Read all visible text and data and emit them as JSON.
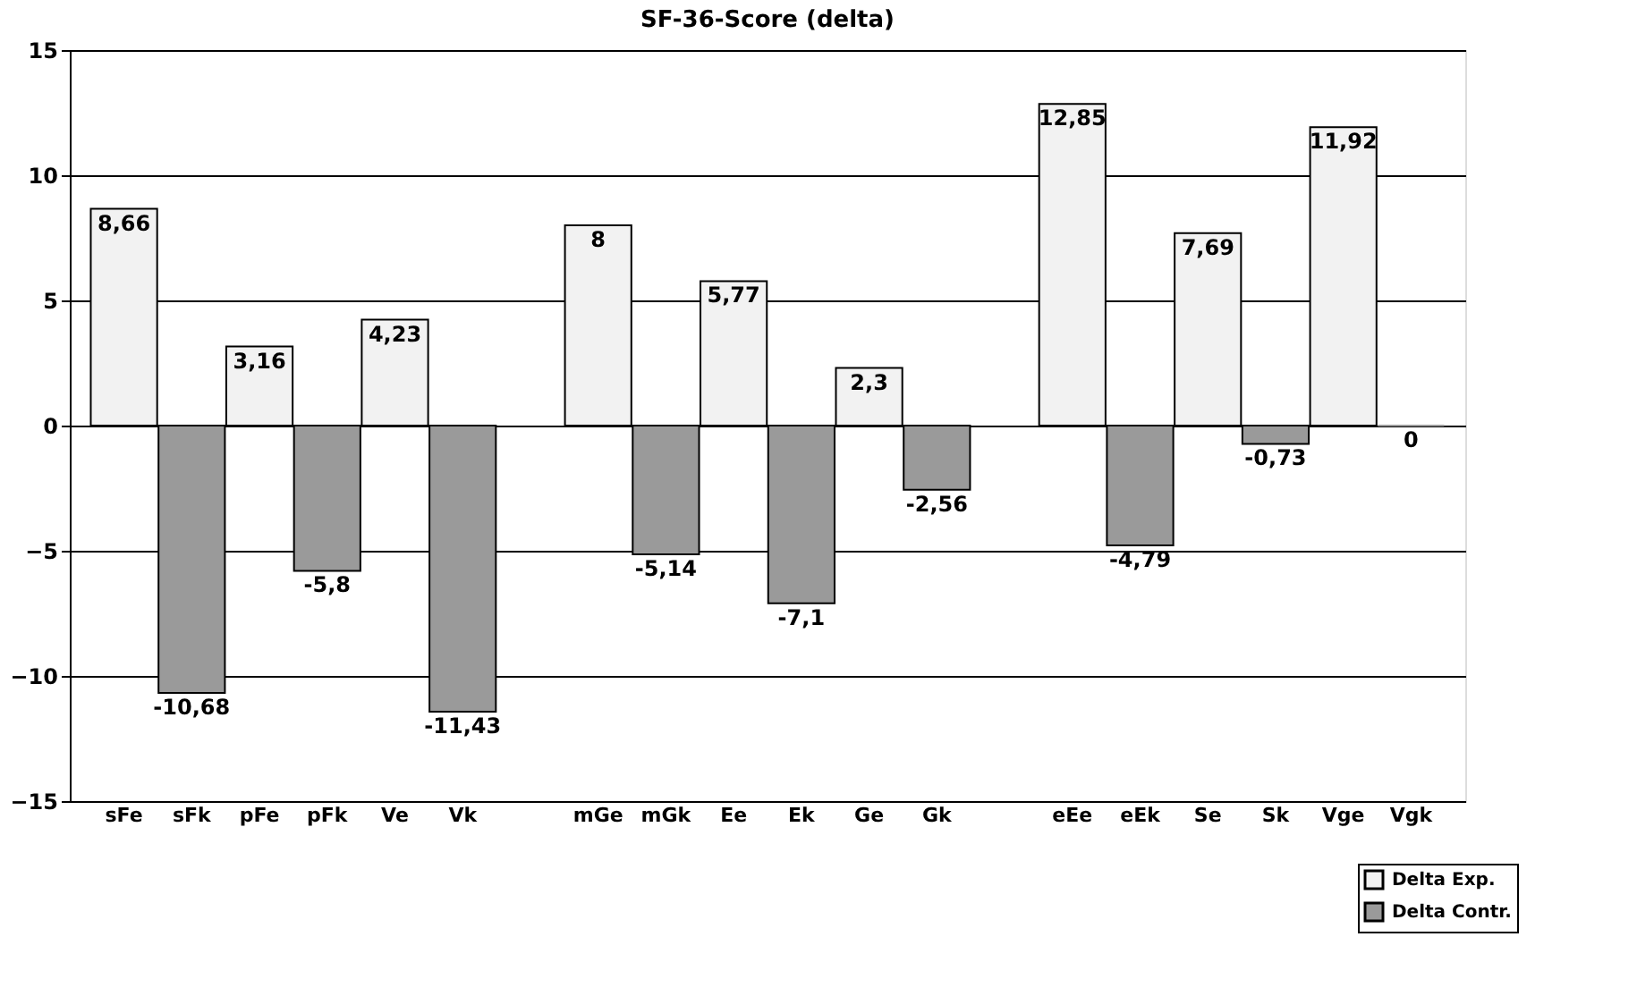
{
  "chart_data": {
    "type": "bar",
    "title": "SF-36-Score (delta)",
    "categories": [
      "sFe",
      "sFk",
      "pFe",
      "pFk",
      "Ve",
      "Vk",
      null,
      "mGe",
      "mGk",
      "Ee",
      "Ek",
      "Ge",
      "Gk",
      null,
      "eEe",
      "eEk",
      "Se",
      "Sk",
      "Vge",
      "Vgk"
    ],
    "series": [
      {
        "name": "Delta Exp.",
        "color": "#f2f2f2",
        "values": [
          8.66,
          null,
          3.16,
          null,
          4.23,
          null,
          null,
          8,
          null,
          5.77,
          null,
          2.3,
          null,
          null,
          12.85,
          null,
          7.69,
          null,
          11.92,
          null
        ],
        "value_labels": [
          "8,66",
          null,
          "3,16",
          null,
          "4,23",
          null,
          null,
          "8",
          null,
          "5,77",
          null,
          "2,3",
          null,
          null,
          "12,85",
          null,
          "7,69",
          null,
          "11,92",
          null
        ]
      },
      {
        "name": "Delta Contr.",
        "color": "#9a9a9a",
        "values": [
          null,
          -10.68,
          null,
          -5.8,
          null,
          -11.43,
          null,
          null,
          -5.14,
          null,
          -7.1,
          null,
          -2.56,
          null,
          null,
          -4.79,
          null,
          -0.73,
          null,
          0
        ],
        "value_labels": [
          null,
          "-10,68",
          null,
          "-5,8",
          null,
          "-11,43",
          null,
          null,
          "-5,14",
          null,
          "-7,1",
          null,
          "-2,56",
          null,
          null,
          "-4,79",
          null,
          "-0,73",
          null,
          "0"
        ]
      }
    ],
    "ylim": [
      -15,
      15
    ],
    "yticks": [
      -15,
      -10,
      -5,
      0,
      5,
      10,
      15
    ],
    "grid": "y",
    "legend": "bottom right"
  }
}
